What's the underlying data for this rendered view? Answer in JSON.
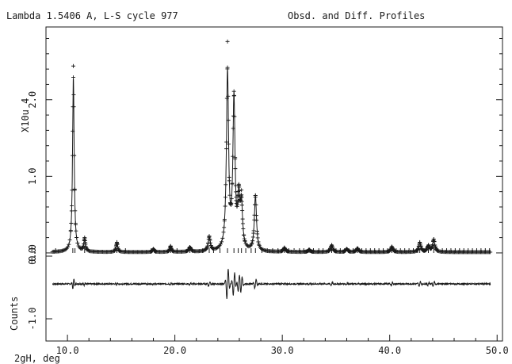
{
  "header": {
    "left_title": "Lambda 1.5406 A, L-S cycle  977",
    "right_title": "Obsd. and Diff. Profiles"
  },
  "chart_data": {
    "type": "line",
    "xlabel": "2gH, deg",
    "ylabel_top": "X10u 4",
    "ylabel_bottom": "Counts",
    "xlim": [
      8.0,
      50.5
    ],
    "ylim": [
      -1.15,
      2.95
    ],
    "x_ticks": [
      {
        "value": 10,
        "label": "10.0"
      },
      {
        "value": 20,
        "label": "20.0"
      },
      {
        "value": 30,
        "label": "30.0"
      },
      {
        "value": 40,
        "label": "40.0"
      },
      {
        "value": 50,
        "label": "50.0"
      }
    ],
    "y_ticks": [
      {
        "value": 0.0,
        "label": "0.0"
      },
      {
        "value": 1.0,
        "label": "1.0"
      },
      {
        "value": 2.0,
        "label": "2.0"
      }
    ],
    "diff_ticks": [
      {
        "value": 0.0,
        "label": "0.0"
      },
      {
        "value": -1.0,
        "label": "-1.0"
      }
    ],
    "x_range_data": [
      8.6,
      49.4
    ],
    "baseline": 0.01,
    "peaks": [
      {
        "x": 10.55,
        "height": 2.28,
        "obs_top": 2.44,
        "diff": 0.07
      },
      {
        "x": 11.6,
        "height": 0.16,
        "obs_top": 0.2,
        "diff": 0.02
      },
      {
        "x": 14.6,
        "height": 0.12,
        "obs_top": 0.14,
        "diff": 0.02
      },
      {
        "x": 18.0,
        "height": 0.04,
        "obs_top": 0.05,
        "diff": 0.01
      },
      {
        "x": 19.6,
        "height": 0.07,
        "obs_top": 0.09,
        "diff": 0.01
      },
      {
        "x": 21.4,
        "height": 0.06,
        "obs_top": 0.07,
        "diff": 0.01
      },
      {
        "x": 23.2,
        "height": 0.18,
        "obs_top": 0.22,
        "diff": 0.03
      },
      {
        "x": 24.9,
        "height": 2.32,
        "obs_top": 2.76,
        "diff": 0.2
      },
      {
        "x": 25.5,
        "height": 1.95,
        "obs_top": 2.05,
        "diff": 0.15
      },
      {
        "x": 25.95,
        "height": 0.62,
        "obs_top": 0.68,
        "diff": 0.1
      },
      {
        "x": 26.2,
        "height": 0.55,
        "obs_top": 0.82,
        "diff": 0.09
      },
      {
        "x": 27.5,
        "height": 0.72,
        "obs_top": 0.73,
        "diff": 0.06
      },
      {
        "x": 30.2,
        "height": 0.05,
        "obs_top": 0.07,
        "diff": 0.01
      },
      {
        "x": 32.5,
        "height": 0.03,
        "obs_top": 0.04,
        "diff": 0.01
      },
      {
        "x": 34.6,
        "height": 0.09,
        "obs_top": 0.1,
        "diff": 0.02
      },
      {
        "x": 36.0,
        "height": 0.04,
        "obs_top": 0.05,
        "diff": 0.01
      },
      {
        "x": 37.0,
        "height": 0.05,
        "obs_top": 0.06,
        "diff": 0.01
      },
      {
        "x": 40.2,
        "height": 0.07,
        "obs_top": 0.08,
        "diff": 0.02
      },
      {
        "x": 42.8,
        "height": 0.12,
        "obs_top": 0.14,
        "diff": 0.03
      },
      {
        "x": 43.6,
        "height": 0.08,
        "obs_top": 0.09,
        "diff": 0.02
      },
      {
        "x": 44.1,
        "height": 0.16,
        "obs_top": 0.18,
        "diff": 0.03
      }
    ],
    "reflections": [
      8.9,
      10.5,
      10.7,
      11.6,
      14.6,
      15.4,
      17.8,
      18.1,
      19.6,
      20.2,
      21.4,
      22.6,
      23.2,
      23.6,
      24.2,
      24.9,
      25.5,
      25.9,
      26.2,
      26.6,
      27.1,
      27.5,
      28.1,
      28.6,
      29.1,
      29.6,
      30.2,
      30.6,
      31.1,
      31.6,
      32.0,
      32.5,
      32.9,
      33.4,
      33.8,
      34.3,
      34.6,
      35.0,
      35.4,
      35.8,
      36.2,
      36.6,
      37.0,
      37.4,
      37.8,
      38.2,
      38.6,
      39.0,
      39.4,
      39.8,
      40.2,
      40.6,
      41.0,
      41.4,
      41.8,
      42.2,
      42.6,
      42.8,
      43.2,
      43.6,
      44.1,
      44.5,
      44.9,
      45.3,
      45.7,
      46.1,
      46.5,
      46.9,
      47.3,
      47.7,
      48.1,
      48.5,
      48.9,
      49.3
    ],
    "reflection_level": -0.04,
    "diff_zero": -0.53,
    "diff_scale": 0.3,
    "colors": {
      "axes": "#1a1a1a",
      "data": "#1a1a1a",
      "background": "#ffffff"
    }
  }
}
